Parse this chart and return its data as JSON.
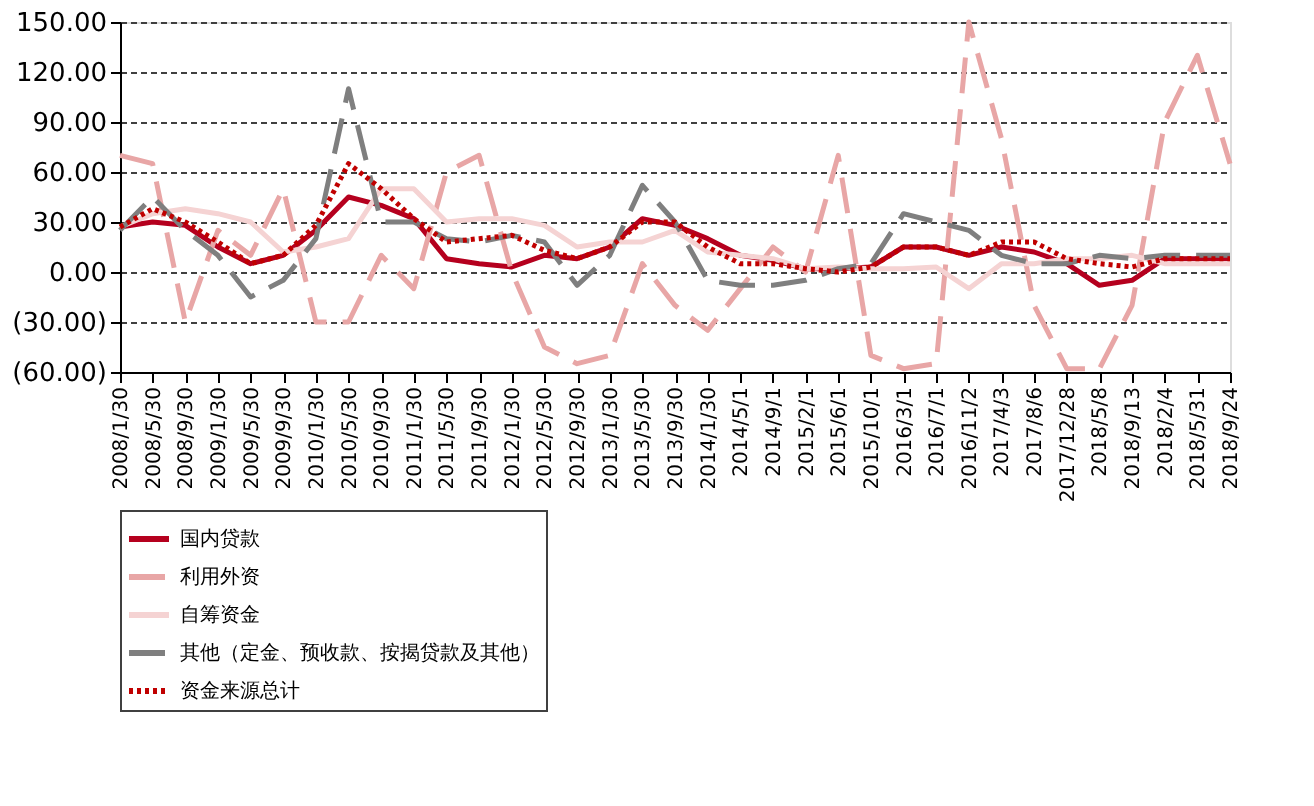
{
  "chart_data": {
    "type": "line",
    "categories": [
      "2008/1/30",
      "2008/5/30",
      "2008/9/30",
      "2009/1/30",
      "2009/5/30",
      "2009/9/30",
      "2010/1/30",
      "2010/5/30",
      "2010/9/30",
      "2011/1/30",
      "2011/5/30",
      "2011/9/30",
      "2012/1/30",
      "2012/5/30",
      "2012/9/30",
      "2013/1/30",
      "2013/5/30",
      "2013/9/30",
      "2014/1/30",
      "2014/5/1",
      "2014/9/1",
      "2015/2/1",
      "2015/6/1",
      "2015/10/1",
      "2016/3/1",
      "2016/7/1",
      "2016/11/2",
      "2017/4/3",
      "2017/8/6",
      "2017/12/28",
      "2018/5/8",
      "2018/9/13",
      "2018/2/4",
      "2018/5/31",
      "2018/9/24"
    ],
    "series": [
      {
        "name": "国内贷款",
        "color": "#b5001e",
        "line_style": "solid",
        "values": [
          27,
          30,
          28,
          15,
          5,
          10,
          25,
          45,
          40,
          32,
          8,
          5,
          3,
          10,
          8,
          15,
          32,
          28,
          20,
          10,
          7,
          2,
          2,
          3,
          15,
          15,
          10,
          15,
          12,
          5,
          -8,
          -5,
          8,
          8,
          8
        ]
      },
      {
        "name": "利用外资",
        "color": "#e8a6a6",
        "line_style": "dashed",
        "values": [
          70,
          65,
          -30,
          25,
          10,
          50,
          -30,
          -30,
          10,
          -10,
          60,
          70,
          0,
          -45,
          -55,
          -50,
          5,
          -20,
          -35,
          -10,
          15,
          0,
          70,
          -50,
          -58,
          -55,
          150,
          80,
          -20,
          -58,
          -58,
          -20,
          90,
          130,
          65
        ]
      },
      {
        "name": "自筹资金",
        "color": "#f5d3d3",
        "line_style": "solid",
        "values": [
          27,
          35,
          38,
          35,
          30,
          12,
          15,
          20,
          50,
          50,
          30,
          32,
          32,
          28,
          15,
          18,
          18,
          25,
          12,
          10,
          8,
          2,
          3,
          2,
          2,
          3,
          -10,
          5,
          5,
          8,
          8,
          10,
          5,
          5,
          5
        ]
      },
      {
        "name": "其他（定金、预收款、按揭贷款及其他）",
        "color": "#7f7f7f",
        "line_style": "dashed",
        "values": [
          25,
          45,
          25,
          10,
          -15,
          -5,
          20,
          110,
          30,
          30,
          20,
          18,
          22,
          18,
          -8,
          10,
          52,
          30,
          -5,
          -8,
          -8,
          -5,
          2,
          5,
          35,
          30,
          25,
          10,
          5,
          5,
          10,
          8,
          10,
          10,
          10
        ]
      },
      {
        "name": "资金来源总计",
        "color": "#c00000",
        "line_style": "dotted",
        "values": [
          27,
          38,
          30,
          18,
          5,
          10,
          28,
          65,
          50,
          32,
          18,
          20,
          22,
          13,
          8,
          15,
          30,
          30,
          15,
          5,
          5,
          2,
          0,
          3,
          15,
          15,
          10,
          18,
          18,
          8,
          5,
          3,
          8,
          8,
          8
        ]
      }
    ],
    "ylim": [
      -60,
      150
    ],
    "yticks": [
      {
        "value": -60,
        "label": "(60.00)"
      },
      {
        "value": -30,
        "label": "(30.00)"
      },
      {
        "value": 0,
        "label": "0.00"
      },
      {
        "value": 30,
        "label": "30.00"
      },
      {
        "value": 60,
        "label": "60.00"
      },
      {
        "value": 90,
        "label": "90.00"
      },
      {
        "value": 120,
        "label": "120.00"
      },
      {
        "value": 150,
        "label": "150.00"
      }
    ],
    "grid": "y",
    "legend": "bottom",
    "marker": "none"
  }
}
